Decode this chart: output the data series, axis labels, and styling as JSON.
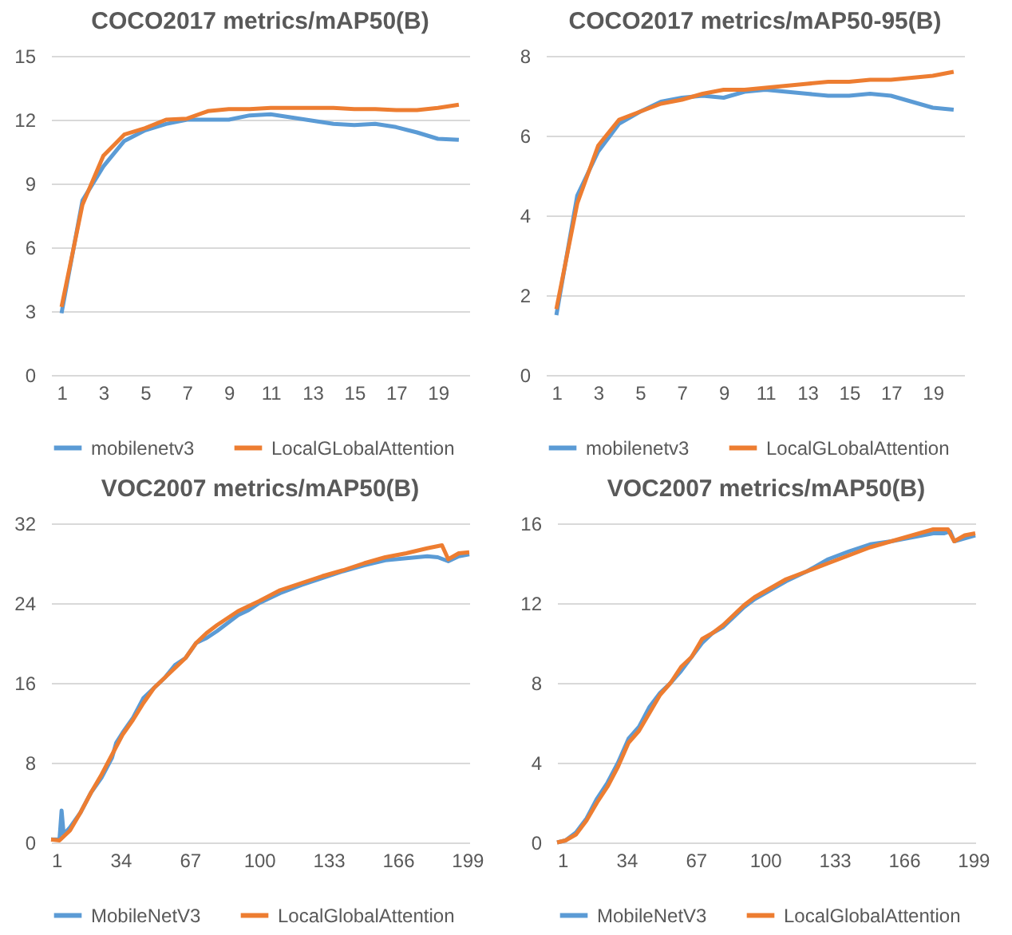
{
  "chart_data": [
    {
      "type": "line",
      "title": "COCO2017 metrics/mAP50(B)",
      "x": [
        1,
        2,
        3,
        4,
        5,
        6,
        7,
        8,
        9,
        10,
        11,
        12,
        13,
        14,
        15,
        16,
        17,
        18,
        19,
        20
      ],
      "xlim": [
        0.5,
        20.5
      ],
      "xticks": [
        1,
        3,
        5,
        7,
        9,
        11,
        13,
        15,
        17,
        19
      ],
      "ylim": [
        0,
        15
      ],
      "yticks": [
        0,
        3,
        6,
        9,
        12,
        15
      ],
      "grid": "y",
      "legend": "bottom",
      "series": [
        {
          "name": "mobilenetv3",
          "color": "#5b9bd5",
          "values": [
            2.9,
            8.2,
            9.8,
            11.0,
            11.5,
            11.8,
            12.0,
            12.0,
            12.0,
            12.2,
            12.25,
            12.1,
            11.95,
            11.8,
            11.75,
            11.8,
            11.65,
            11.4,
            11.1,
            11.05
          ]
        },
        {
          "name": "LocalGLobalAttention",
          "color": "#ed7d31",
          "values": [
            3.2,
            8.0,
            10.3,
            11.3,
            11.6,
            12.0,
            12.05,
            12.4,
            12.5,
            12.5,
            12.55,
            12.55,
            12.55,
            12.55,
            12.5,
            12.5,
            12.45,
            12.45,
            12.55,
            12.7
          ]
        }
      ]
    },
    {
      "type": "line",
      "title": "COCO2017 metrics/mAP50-95(B)",
      "x": [
        1,
        2,
        3,
        4,
        5,
        6,
        7,
        8,
        9,
        10,
        11,
        12,
        13,
        14,
        15,
        16,
        17,
        18,
        19,
        20
      ],
      "xlim": [
        0.5,
        20.5
      ],
      "xticks": [
        1,
        3,
        5,
        7,
        9,
        11,
        13,
        15,
        17,
        19
      ],
      "ylim": [
        0,
        8
      ],
      "yticks": [
        0,
        2,
        4,
        6,
        8
      ],
      "grid": "y",
      "legend": "bottom",
      "series": [
        {
          "name": "mobilenetv3",
          "color": "#5b9bd5",
          "values": [
            1.5,
            4.5,
            5.6,
            6.3,
            6.6,
            6.85,
            6.95,
            7.0,
            6.95,
            7.1,
            7.15,
            7.1,
            7.05,
            7.0,
            7.0,
            7.05,
            7.0,
            6.85,
            6.7,
            6.65
          ]
        },
        {
          "name": "LocalGLobalAttention",
          "color": "#ed7d31",
          "values": [
            1.65,
            4.3,
            5.75,
            6.4,
            6.6,
            6.8,
            6.9,
            7.05,
            7.15,
            7.15,
            7.2,
            7.25,
            7.3,
            7.35,
            7.35,
            7.4,
            7.4,
            7.45,
            7.5,
            7.6
          ]
        }
      ]
    },
    {
      "type": "line",
      "title": "VOC2007 metrics/mAP50(B)",
      "xlim": [
        1,
        200
      ],
      "xticks": [
        1,
        34,
        67,
        100,
        133,
        166,
        199
      ],
      "ylim": [
        0,
        32
      ],
      "yticks": [
        0,
        8,
        16,
        24,
        32
      ],
      "grid": "y",
      "legend": "bottom",
      "series": [
        {
          "name": "MobileNetV3",
          "color": "#5b9bd5",
          "x": [
            1,
            5,
            6,
            7,
            10,
            15,
            20,
            25,
            30,
            32,
            35,
            40,
            45,
            50,
            55,
            60,
            65,
            70,
            75,
            80,
            85,
            90,
            95,
            100,
            110,
            120,
            130,
            140,
            150,
            160,
            170,
            180,
            185,
            190,
            195,
            200
          ],
          "values": [
            0.3,
            0.3,
            3.2,
            0.8,
            1.5,
            3,
            5,
            6.5,
            8.5,
            10,
            11,
            12.5,
            14.5,
            15.5,
            16.5,
            17.8,
            18.5,
            20,
            20.5,
            21.2,
            22,
            22.8,
            23.3,
            24,
            25,
            25.8,
            26.5,
            27.2,
            27.8,
            28.3,
            28.5,
            28.7,
            28.6,
            28.2,
            28.7,
            28.9
          ]
        },
        {
          "name": "LocalGlobalAttention",
          "color": "#ed7d31",
          "x": [
            1,
            5,
            10,
            15,
            20,
            25,
            30,
            35,
            40,
            45,
            50,
            55,
            60,
            65,
            70,
            75,
            80,
            85,
            90,
            100,
            110,
            120,
            130,
            140,
            150,
            160,
            170,
            180,
            187,
            190,
            195,
            200
          ],
          "values": [
            0.3,
            0.2,
            1.2,
            3,
            5,
            6.8,
            8.8,
            10.8,
            12.3,
            14,
            15.5,
            16.5,
            17.5,
            18.5,
            20,
            21,
            21.8,
            22.5,
            23.2,
            24.2,
            25.3,
            26,
            26.7,
            27.3,
            28,
            28.6,
            29,
            29.5,
            29.8,
            28.4,
            29,
            29.1
          ]
        }
      ]
    },
    {
      "type": "line",
      "title": "VOC2007 metrics/mAP50(B)",
      "xlim": [
        1,
        200
      ],
      "xticks": [
        1,
        34,
        67,
        100,
        133,
        166,
        199
      ],
      "ylim": [
        0,
        16
      ],
      "yticks": [
        0,
        4,
        8,
        12,
        16
      ],
      "grid": "y",
      "legend": "bottom",
      "series": [
        {
          "name": "MobileNetV3",
          "color": "#5b9bd5",
          "x": [
            1,
            5,
            10,
            15,
            20,
            25,
            30,
            35,
            40,
            45,
            50,
            55,
            60,
            65,
            70,
            75,
            80,
            85,
            90,
            95,
            100,
            110,
            120,
            130,
            140,
            150,
            160,
            170,
            180,
            185,
            188,
            190,
            195,
            200
          ],
          "values": [
            0,
            0.1,
            0.5,
            1.2,
            2.2,
            3,
            4,
            5.2,
            5.8,
            6.8,
            7.5,
            8.0,
            8.6,
            9.3,
            10,
            10.5,
            10.8,
            11.3,
            11.8,
            12.2,
            12.5,
            13.1,
            13.6,
            14.2,
            14.6,
            14.95,
            15.1,
            15.3,
            15.5,
            15.5,
            15.6,
            15.1,
            15.25,
            15.4
          ]
        },
        {
          "name": "LocalGlobalAttention",
          "color": "#ed7d31",
          "x": [
            1,
            5,
            10,
            15,
            20,
            25,
            30,
            35,
            40,
            45,
            50,
            55,
            60,
            65,
            70,
            75,
            80,
            85,
            90,
            95,
            100,
            110,
            120,
            130,
            140,
            150,
            160,
            170,
            180,
            187,
            190,
            195,
            200
          ],
          "values": [
            0,
            0.1,
            0.4,
            1.1,
            2,
            2.8,
            3.8,
            5,
            5.6,
            6.5,
            7.4,
            8,
            8.8,
            9.3,
            10.2,
            10.5,
            10.9,
            11.4,
            11.9,
            12.3,
            12.6,
            13.2,
            13.6,
            14,
            14.4,
            14.8,
            15.1,
            15.4,
            15.7,
            15.7,
            15.1,
            15.4,
            15.5
          ]
        }
      ]
    }
  ]
}
